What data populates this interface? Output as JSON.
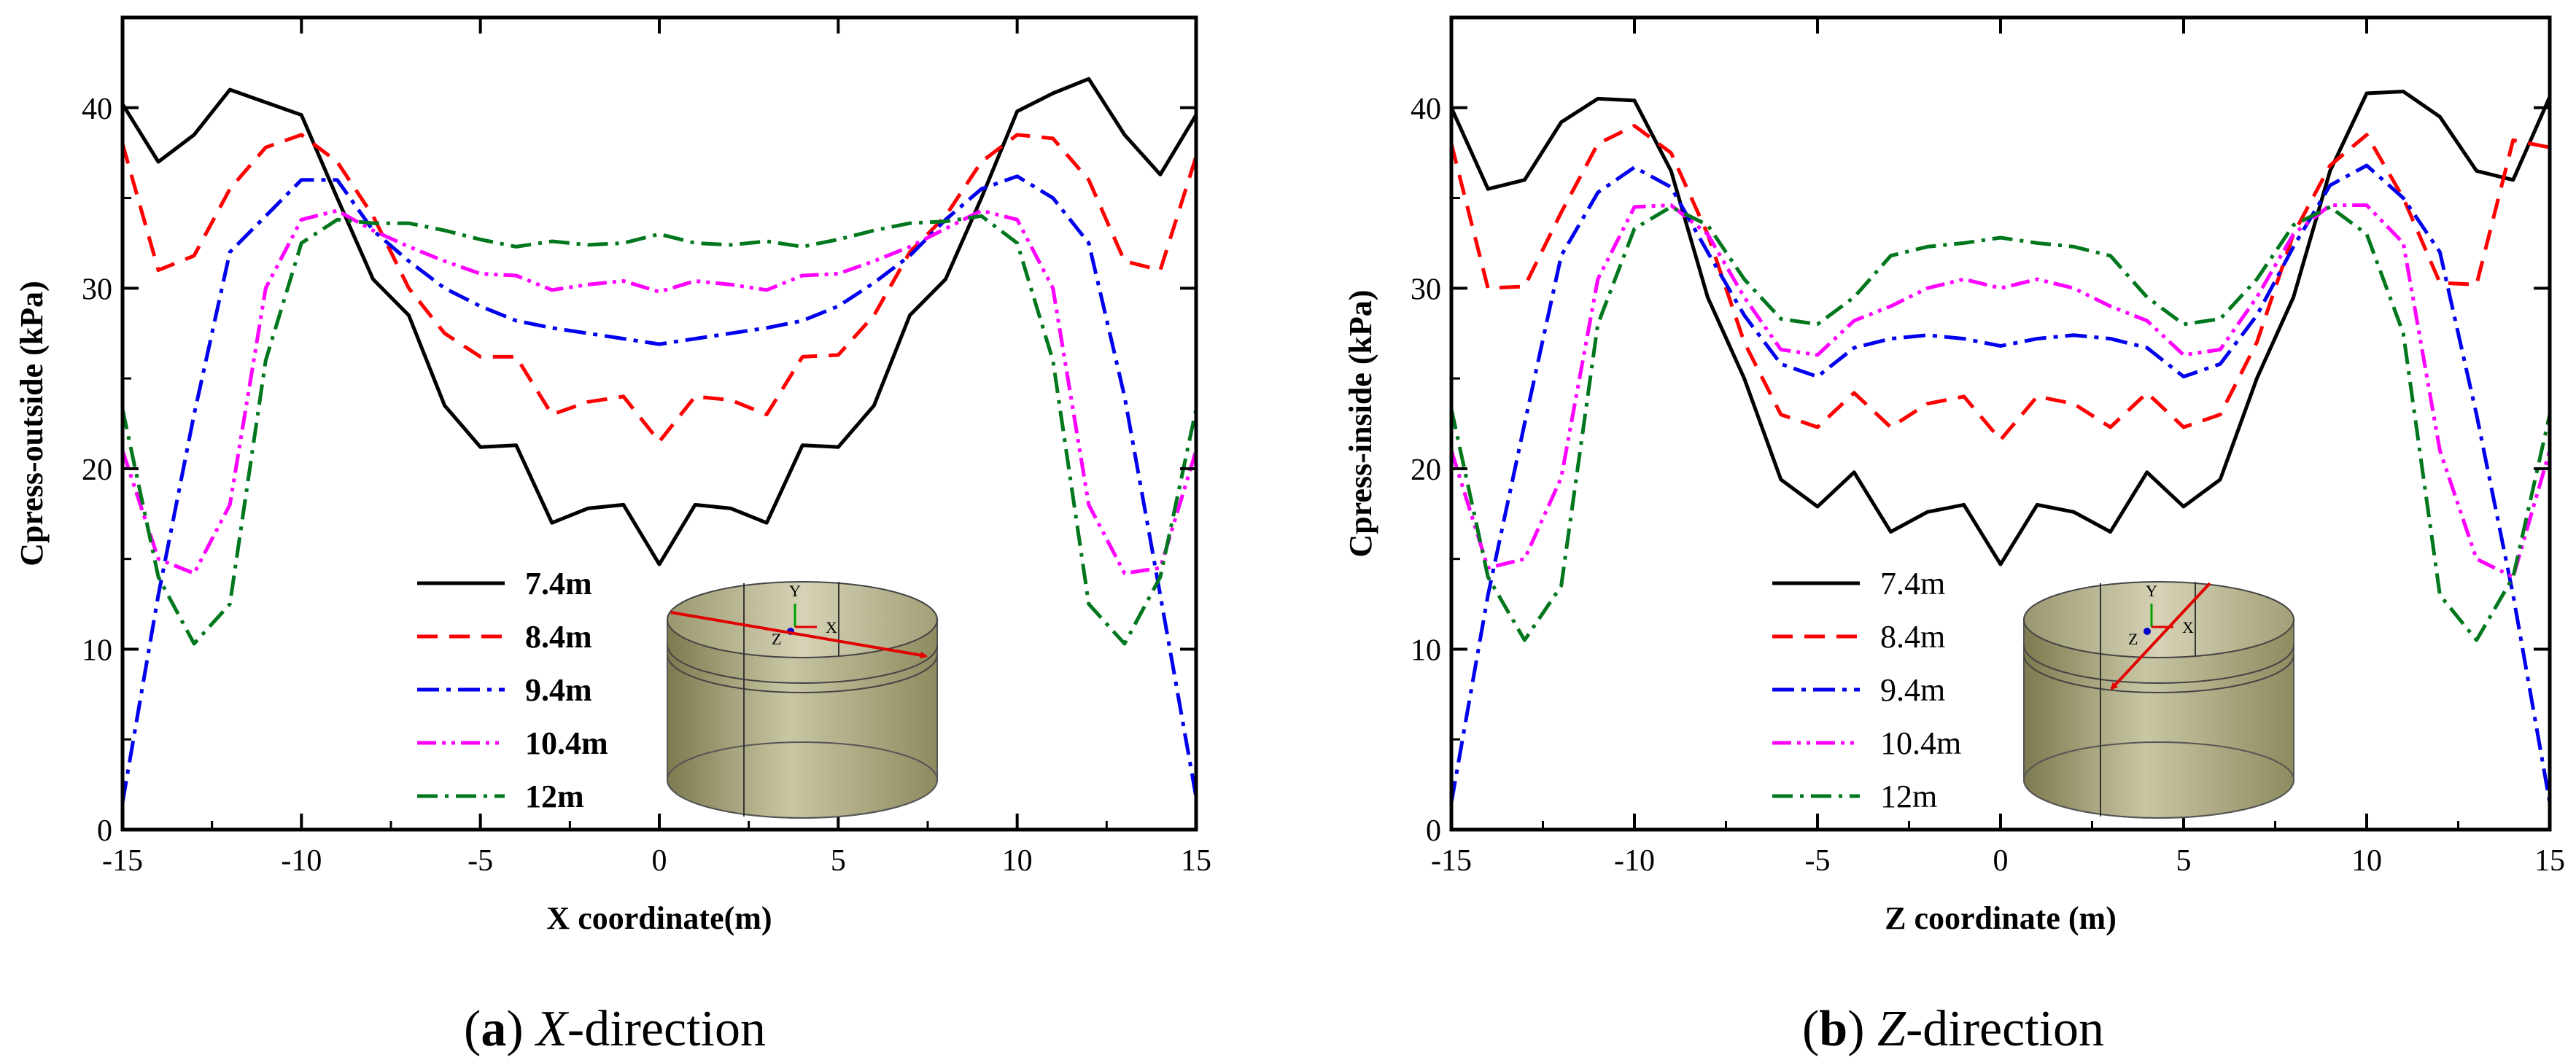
{
  "chart_data": [
    {
      "type": "line",
      "panel": "a",
      "caption_letter": "a",
      "caption_axis": "X",
      "caption_rest": "-direction",
      "xlabel": "X coordinate(m)",
      "ylabel": "Cpress-outside (kPa)",
      "xlim": [
        -15,
        15
      ],
      "ylim": [
        0,
        45
      ],
      "xticks": [
        -15,
        -10,
        -5,
        0,
        5,
        10,
        15
      ],
      "yticks": [
        0,
        10,
        20,
        30,
        40
      ],
      "legend_position": "bottom-center",
      "legend_bold": true,
      "inset_axis_labels": [
        "Y",
        "Z",
        "X"
      ],
      "series": [
        {
          "name": "7.4m",
          "color": "#000000",
          "dash": "",
          "x": [
            -15,
            -14,
            -13,
            -12,
            -11,
            -10,
            -9,
            -8,
            -7,
            -6,
            -5,
            -4,
            -3,
            -2,
            -1,
            0,
            1,
            2,
            3,
            4,
            5,
            6,
            7,
            8,
            9,
            10,
            11,
            12,
            13,
            14,
            15
          ],
          "y": [
            40.2,
            37,
            38.5,
            41,
            40.3,
            39.6,
            35,
            30.5,
            28.5,
            23.5,
            21.2,
            21.3,
            17,
            17.8,
            18,
            14.7,
            18,
            17.8,
            17,
            21.3,
            21.2,
            23.5,
            28.5,
            30.5,
            35,
            39.8,
            40.8,
            41.6,
            38.5,
            36.3,
            39.6
          ]
        },
        {
          "name": "8.4m",
          "color": "#ff0000",
          "dash": "28,16",
          "x": [
            -15,
            -14,
            -13,
            -12,
            -11,
            -10,
            -9,
            -8,
            -7,
            -6,
            -5,
            -4,
            -3,
            -2,
            -1,
            0,
            1,
            2,
            3,
            4,
            5,
            6,
            7,
            8,
            9,
            10,
            11,
            12,
            13,
            14,
            15
          ],
          "y": [
            38,
            31,
            31.8,
            35.5,
            37.8,
            38.5,
            37,
            34,
            30,
            27.5,
            26.2,
            26.2,
            23,
            23.7,
            24,
            21.5,
            24,
            23.8,
            23,
            26.2,
            26.3,
            28.5,
            32,
            34,
            37,
            38.5,
            38.3,
            36,
            31.5,
            31,
            37.3
          ]
        },
        {
          "name": "9.4m",
          "color": "#0000ee",
          "dash": "30,10,6,10",
          "x": [
            -15,
            -14,
            -13,
            -12,
            -11,
            -10,
            -9,
            -8,
            -7,
            -6,
            -5,
            -4,
            -3,
            -2,
            -1,
            0,
            1,
            2,
            3,
            4,
            5,
            6,
            7,
            8,
            9,
            10,
            11,
            12,
            13,
            14,
            15
          ],
          "y": [
            1.5,
            13,
            23,
            32,
            34,
            36,
            36,
            33.2,
            31.5,
            30,
            29,
            28.2,
            27.8,
            27.5,
            27.2,
            26.9,
            27.2,
            27.5,
            27.8,
            28.2,
            29,
            30.3,
            31.8,
            33.8,
            35.5,
            36.2,
            35,
            32.5,
            24,
            13,
            1.8
          ]
        },
        {
          "name": "10.4m",
          "color": "#ff00ff",
          "dash": "26,8,5,8,5,8",
          "x": [
            -15,
            -14,
            -13,
            -12,
            -11,
            -10,
            -9,
            -8,
            -7,
            -6,
            -5,
            -4,
            -3,
            -2,
            -1,
            0,
            1,
            2,
            3,
            4,
            5,
            6,
            7,
            8,
            9,
            10,
            11,
            12,
            13,
            14,
            15
          ],
          "y": [
            21,
            15,
            14.2,
            18,
            30,
            33.8,
            34.3,
            33.2,
            32.3,
            31.5,
            30.8,
            30.7,
            29.9,
            30.2,
            30.4,
            29.8,
            30.4,
            30.2,
            29.9,
            30.7,
            30.8,
            31.5,
            32.3,
            33.3,
            34.3,
            33.8,
            30,
            18,
            14.2,
            14.5,
            21
          ]
        },
        {
          "name": "12m",
          "color": "#00771c",
          "dash": "28,10,5,10",
          "x": [
            -15,
            -14,
            -13,
            -12,
            -11,
            -10,
            -9,
            -8,
            -7,
            -6,
            -5,
            -4,
            -3,
            -2,
            -1,
            0,
            1,
            2,
            3,
            4,
            5,
            6,
            7,
            8,
            9,
            10,
            11,
            12,
            13,
            14,
            15
          ],
          "y": [
            23.3,
            14,
            10.3,
            12.5,
            26,
            32.5,
            33.8,
            33.6,
            33.6,
            33.2,
            32.7,
            32.3,
            32.6,
            32.4,
            32.5,
            33,
            32.5,
            32.4,
            32.6,
            32.3,
            32.7,
            33.2,
            33.6,
            33.7,
            34,
            32.5,
            26,
            12.5,
            10.3,
            14,
            23.3
          ]
        }
      ]
    },
    {
      "type": "line",
      "panel": "b",
      "caption_letter": "b",
      "caption_axis": "Z",
      "caption_rest": "-direction",
      "xlabel": "Z coordinate (m)",
      "ylabel": "Cpress-inside (kPa)",
      "xlim": [
        -15,
        15
      ],
      "ylim": [
        0,
        45
      ],
      "xticks": [
        -15,
        -10,
        -5,
        0,
        5,
        10,
        15
      ],
      "yticks": [
        0,
        10,
        20,
        30,
        40
      ],
      "legend_position": "bottom-center",
      "legend_bold": false,
      "inset_axis_labels": [
        "Y",
        "Z",
        "X"
      ],
      "series": [
        {
          "name": "7.4m",
          "color": "#000000",
          "dash": "",
          "x": [
            -15,
            -14,
            -13,
            -12,
            -11,
            -10,
            -9,
            -8,
            -7,
            -6,
            -5,
            -4,
            -3,
            -2,
            -1,
            0,
            1,
            2,
            3,
            4,
            5,
            6,
            7,
            8,
            9,
            10,
            11,
            12,
            13,
            14,
            15
          ],
          "y": [
            40,
            35.5,
            36,
            39.2,
            40.5,
            40.4,
            36.5,
            29.5,
            25,
            19.4,
            17.9,
            19.8,
            16.5,
            17.6,
            18,
            14.7,
            18,
            17.6,
            16.5,
            19.8,
            17.9,
            19.4,
            25,
            29.5,
            36.5,
            40.8,
            40.9,
            39.5,
            36.5,
            36,
            40.6
          ]
        },
        {
          "name": "8.4m",
          "color": "#ff0000",
          "dash": "28,16",
          "x": [
            -15,
            -14,
            -13,
            -12,
            -11,
            -10,
            -9,
            -8,
            -7,
            -6,
            -5,
            -4,
            -3,
            -2,
            -1,
            0,
            1,
            2,
            3,
            4,
            5,
            6,
            7,
            8,
            9,
            10,
            11,
            12,
            13,
            14,
            15
          ],
          "y": [
            38,
            30,
            30.1,
            34.2,
            38,
            39,
            37.5,
            33,
            27,
            23,
            22.3,
            24.2,
            22.3,
            23.6,
            24,
            21.6,
            24,
            23.6,
            22.3,
            24.2,
            22.3,
            23,
            27,
            33,
            36.8,
            38.5,
            35,
            30.3,
            30.2,
            38.2,
            37.8
          ]
        },
        {
          "name": "9.4m",
          "color": "#0000ee",
          "dash": "30,10,6,10",
          "x": [
            -15,
            -14,
            -13,
            -12,
            -11,
            -10,
            -9,
            -8,
            -7,
            -6,
            -5,
            -4,
            -3,
            -2,
            -1,
            0,
            1,
            2,
            3,
            4,
            5,
            6,
            7,
            8,
            9,
            10,
            11,
            12,
            13,
            14,
            15
          ],
          "y": [
            1.5,
            13,
            22.5,
            31.8,
            35.3,
            36.7,
            35.6,
            32,
            28.5,
            25.8,
            25.1,
            26.7,
            27.2,
            27.4,
            27.2,
            26.8,
            27.2,
            27.4,
            27.2,
            26.7,
            25.1,
            25.8,
            28.5,
            32.3,
            35.7,
            36.8,
            35,
            32,
            23,
            13,
            1.5
          ]
        },
        {
          "name": "10.4m",
          "color": "#ff00ff",
          "dash": "26,8,5,8,5,8",
          "x": [
            -15,
            -14,
            -13,
            -12,
            -11,
            -10,
            -9,
            -8,
            -7,
            -6,
            -5,
            -4,
            -3,
            -2,
            -1,
            0,
            1,
            2,
            3,
            4,
            5,
            6,
            7,
            8,
            9,
            10,
            11,
            12,
            13,
            14,
            15
          ],
          "y": [
            21,
            14.5,
            15,
            19.5,
            30.5,
            34.5,
            34.6,
            33,
            29.5,
            26.6,
            26.3,
            28.2,
            29,
            30,
            30.5,
            30,
            30.5,
            30,
            29,
            28.2,
            26.3,
            26.6,
            29.5,
            33,
            34.6,
            34.6,
            32.5,
            21,
            15,
            14,
            21
          ]
        },
        {
          "name": "12m",
          "color": "#00771c",
          "dash": "28,10,5,10",
          "x": [
            -15,
            -14,
            -13,
            -12,
            -11,
            -10,
            -9,
            -8,
            -7,
            -6,
            -5,
            -4,
            -3,
            -2,
            -1,
            0,
            1,
            2,
            3,
            4,
            5,
            6,
            7,
            8,
            9,
            10,
            11,
            12,
            13,
            14,
            15
          ],
          "y": [
            23.3,
            14,
            10.5,
            13.5,
            28,
            33.3,
            34.5,
            33.5,
            30.5,
            28.3,
            28,
            29.5,
            31.8,
            32.3,
            32.5,
            32.8,
            32.5,
            32.3,
            31.8,
            29.5,
            28,
            28.3,
            30.5,
            33.5,
            34.5,
            33,
            27.5,
            13,
            10.5,
            14,
            23
          ]
        }
      ]
    }
  ]
}
